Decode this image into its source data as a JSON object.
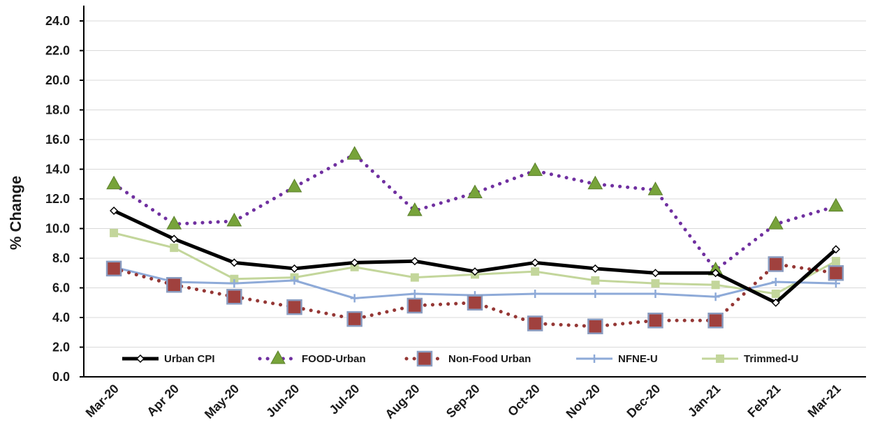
{
  "chart_data": {
    "type": "line",
    "title": "",
    "xlabel": "",
    "ylabel": "% Change",
    "ylim": [
      0,
      24
    ],
    "yticks": [
      "0.0",
      "2.0",
      "4.0",
      "6.0",
      "8.0",
      "10.0",
      "12.0",
      "14.0",
      "16.0",
      "18.0",
      "20.0",
      "22.0",
      "24.0"
    ],
    "grid": true,
    "legend_position": "bottom-inside",
    "categories": [
      "Mar-20",
      "Apr 20",
      "May-20",
      "Jun-20",
      "Jul-20",
      "Aug-20",
      "Sep-20",
      "Oct-20",
      "Nov-20",
      "Dec-20",
      "Jan-21",
      "Feb-21",
      "Mar-21"
    ],
    "series": [
      {
        "name": "Urban CPI",
        "color": "#000000",
        "style": "solid-thick",
        "marker": "diamond",
        "values": [
          11.2,
          9.3,
          7.7,
          7.3,
          7.7,
          7.8,
          7.1,
          7.7,
          7.3,
          7.0,
          7.0,
          5.0,
          8.6
        ]
      },
      {
        "name": "FOOD-Urban",
        "color": "#7030a0",
        "marker_color": "#77a33a",
        "style": "dotted",
        "marker": "triangle",
        "values": [
          13.0,
          10.3,
          10.5,
          12.8,
          15.0,
          11.2,
          12.4,
          13.9,
          13.0,
          12.6,
          7.2,
          10.3,
          11.5
        ]
      },
      {
        "name": "Non-Food Urban",
        "color": "#953735",
        "marker_color": "#a0413e",
        "style": "dotted",
        "marker": "square",
        "values": [
          7.3,
          6.2,
          5.4,
          4.7,
          3.9,
          4.8,
          5.0,
          3.6,
          3.4,
          3.8,
          3.8,
          7.6,
          7.0
        ]
      },
      {
        "name": "NFNE-U",
        "color": "#8eaad8",
        "style": "solid",
        "marker": "plus",
        "values": [
          7.4,
          6.4,
          6.3,
          6.5,
          5.3,
          5.6,
          5.5,
          5.6,
          5.6,
          5.6,
          5.4,
          6.4,
          6.3
        ]
      },
      {
        "name": "Trimmed-U",
        "color": "#c3d69b",
        "style": "solid",
        "marker": "square-small",
        "values": [
          9.7,
          8.7,
          6.6,
          6.7,
          7.4,
          6.7,
          6.9,
          7.1,
          6.5,
          6.3,
          6.2,
          5.6,
          7.8
        ]
      }
    ]
  }
}
